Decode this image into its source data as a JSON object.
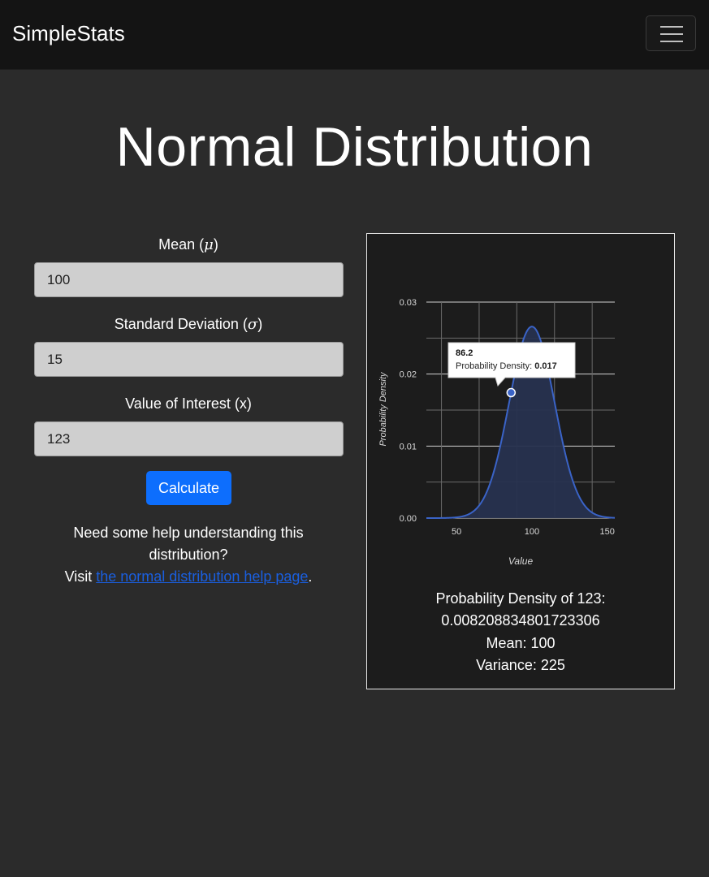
{
  "navbar": {
    "brand": "SimpleStats",
    "menu_icon": "hamburger-icon"
  },
  "page_title": "Normal Distribution",
  "form": {
    "mean_label_text": "Mean (",
    "mean_symbol": "μ",
    "mean_label_close": ")",
    "mean_value": "100",
    "sd_label_text": "Standard Deviation (",
    "sd_symbol": "σ",
    "sd_label_close": ")",
    "sd_value": "15",
    "x_label": "Value of Interest (x)",
    "x_value": "123",
    "calculate_label": "Calculate"
  },
  "help": {
    "line1": "Need some help understanding this distribution?",
    "visit": "Visit ",
    "link_text": "the normal distribution help page",
    "suffix": "."
  },
  "chart_data": {
    "type": "area",
    "mean": 100,
    "sd": 15,
    "xlim": [
      30,
      155
    ],
    "ylim": [
      0,
      0.03
    ],
    "x_ticks": [
      "50",
      "100",
      "150"
    ],
    "y_ticks": [
      "0.00",
      "0.01",
      "0.02",
      "0.03"
    ],
    "xlabel": "Value",
    "ylabel": "Probability Density",
    "grid": true,
    "tooltip": {
      "x": "86.2",
      "label": "Probability Density: ",
      "value": "0.017"
    },
    "colors": {
      "line": "#3a63c7",
      "fill": "#27324f"
    }
  },
  "results": {
    "density_label": "Probability Density of 123:",
    "density_value": "0.008208834801723306",
    "mean_line": "Mean: 100",
    "variance_line": "Variance: 225"
  }
}
